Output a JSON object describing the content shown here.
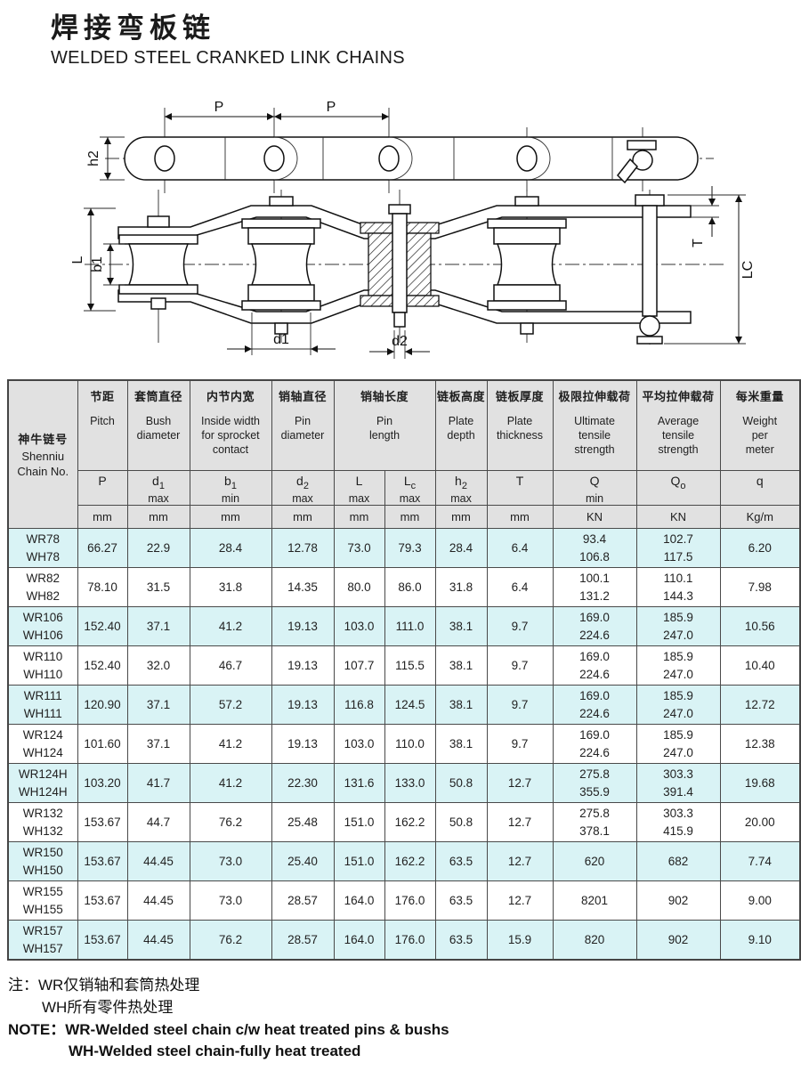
{
  "page": {
    "title_cn": "焊接弯板链",
    "title_en": "WELDED STEEL CRANKED LINK CHAINS"
  },
  "drawing": {
    "labels": {
      "pitch_left": "P",
      "pitch_right": "P",
      "plate_depth": "h2",
      "pin_length": "L",
      "inside_width": "b1",
      "bush_dia": "d1",
      "pin_dia": "d2",
      "plate_thickness": "T",
      "cotter_length": "LC"
    }
  },
  "table": {
    "chain_no_header": {
      "cn": "神牛链号",
      "en1": "Shenniu",
      "en2": "Chain No."
    },
    "header_groups": [
      {
        "cn": "节距",
        "en": "Pitch",
        "colspan": 1
      },
      {
        "cn": "套筒直径",
        "en": "Bush\ndiameter",
        "colspan": 1
      },
      {
        "cn": "内节内宽",
        "en": "Inside width\nfor sprocket\ncontact",
        "colspan": 1
      },
      {
        "cn": "销轴直径",
        "en": "Pin\ndiameter",
        "colspan": 1
      },
      {
        "cn": "销轴长度",
        "en": "Pin\nlength",
        "colspan": 2
      },
      {
        "cn": "链板高度",
        "en": "Plate\ndepth",
        "colspan": 1
      },
      {
        "cn": "链板厚度",
        "en": "Plate\nthickness",
        "colspan": 1
      },
      {
        "cn": "极限拉伸载荷",
        "en": "Ultimate\ntensile\nstrength",
        "colspan": 1
      },
      {
        "cn": "平均拉伸载荷",
        "en": "Average\ntensile\nstrength",
        "colspan": 1
      },
      {
        "cn": "每米重量",
        "en": "Weight\nper\nmeter",
        "colspan": 1
      }
    ],
    "symbols": [
      {
        "m": "P"
      },
      {
        "m": "d",
        "s": "1",
        "q": "max"
      },
      {
        "m": "b",
        "s": "1",
        "q": "min"
      },
      {
        "m": "d",
        "s": "2",
        "q": "max"
      },
      {
        "m": "L",
        "q": "max"
      },
      {
        "m": "L",
        "s": "c",
        "q": "max"
      },
      {
        "m": "h",
        "s": "2",
        "q": "max"
      },
      {
        "m": "T"
      },
      {
        "m": "Q",
        "q": "min"
      },
      {
        "m": "Q",
        "s": "o"
      },
      {
        "m": "q"
      }
    ],
    "units": [
      "mm",
      "mm",
      "mm",
      "mm",
      "mm",
      "mm",
      "mm",
      "mm",
      "KN",
      "KN",
      "Kg/m"
    ],
    "rows": [
      {
        "chain": "WR78\nWH78",
        "shade": true,
        "v": [
          "66.27",
          "22.9",
          "28.4",
          "12.78",
          "73.0",
          "79.3",
          "28.4",
          "6.4",
          "93.4\n106.8",
          "102.7\n117.5",
          "6.20"
        ]
      },
      {
        "chain": "WR82\nWH82",
        "shade": false,
        "v": [
          "78.10",
          "31.5",
          "31.8",
          "14.35",
          "80.0",
          "86.0",
          "31.8",
          "6.4",
          "100.1\n131.2",
          "110.1\n144.3",
          "7.98"
        ]
      },
      {
        "chain": "WR106\nWH106",
        "shade": true,
        "v": [
          "152.40",
          "37.1",
          "41.2",
          "19.13",
          "103.0",
          "111.0",
          "38.1",
          "9.7",
          "169.0\n224.6",
          "185.9\n247.0",
          "10.56"
        ]
      },
      {
        "chain": "WR110\nWH110",
        "shade": false,
        "v": [
          "152.40",
          "32.0",
          "46.7",
          "19.13",
          "107.7",
          "115.5",
          "38.1",
          "9.7",
          "169.0\n224.6",
          "185.9\n247.0",
          "10.40"
        ]
      },
      {
        "chain": "WR111\nWH111",
        "shade": true,
        "v": [
          "120.90",
          "37.1",
          "57.2",
          "19.13",
          "116.8",
          "124.5",
          "38.1",
          "9.7",
          "169.0\n224.6",
          "185.9\n247.0",
          "12.72"
        ]
      },
      {
        "chain": "WR124\nWH124",
        "shade": false,
        "v": [
          "101.60",
          "37.1",
          "41.2",
          "19.13",
          "103.0",
          "110.0",
          "38.1",
          "9.7",
          "169.0\n224.6",
          "185.9\n247.0",
          "12.38"
        ]
      },
      {
        "chain": "WR124H\nWH124H",
        "shade": true,
        "v": [
          "103.20",
          "41.7",
          "41.2",
          "22.30",
          "131.6",
          "133.0",
          "50.8",
          "12.7",
          "275.8\n355.9",
          "303.3\n391.4",
          "19.68"
        ]
      },
      {
        "chain": "WR132\nWH132",
        "shade": false,
        "v": [
          "153.67",
          "44.7",
          "76.2",
          "25.48",
          "151.0",
          "162.2",
          "50.8",
          "12.7",
          "275.8\n378.1",
          "303.3\n415.9",
          "20.00"
        ]
      },
      {
        "chain": "WR150\nWH150",
        "shade": true,
        "v": [
          "153.67",
          "44.45",
          "73.0",
          "25.40",
          "151.0",
          "162.2",
          "63.5",
          "12.7",
          "620",
          "682",
          "7.74"
        ]
      },
      {
        "chain": "WR155\nWH155",
        "shade": false,
        "v": [
          "153.67",
          "44.45",
          "73.0",
          "28.57",
          "164.0",
          "176.0",
          "63.5",
          "12.7",
          "8201",
          "902",
          "9.00"
        ]
      },
      {
        "chain": "WR157\nWH157",
        "shade": true,
        "v": [
          "153.67",
          "44.45",
          "76.2",
          "28.57",
          "164.0",
          "176.0",
          "63.5",
          "15.9",
          "820",
          "902",
          "9.10"
        ]
      }
    ]
  },
  "notes": {
    "line1": "注：WR仅销轴和套筒热处理",
    "line2": "WH所有零件热处理",
    "line3": "NOTE：WR-Welded steel chain c/w heat treated pins & bushs",
    "line4": "WH-Welded steel chain-fully heat treated"
  }
}
